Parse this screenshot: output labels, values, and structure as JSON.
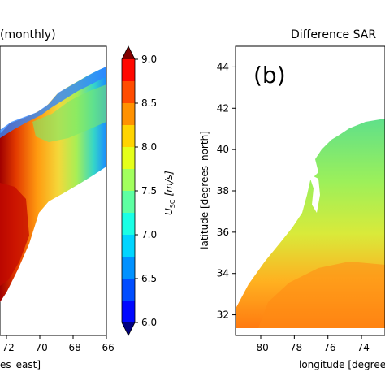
{
  "chart_data": [
    {
      "type": "heatmap",
      "panel": "left",
      "title": "(monthly)",
      "xlabel": "es_east]",
      "xticks": [
        "-72",
        "-70",
        "-68",
        "-66"
      ],
      "colormap": "jet",
      "colorbar": {
        "label": "U",
        "label_sub": "SC",
        "label_units": "[m/s]",
        "min": 6.0,
        "max": 9.0,
        "extend": "both",
        "levels": [
          6.0,
          6.25,
          6.5,
          6.75,
          7.0,
          7.25,
          7.5,
          7.75,
          8.0,
          8.25,
          8.5,
          8.75,
          9.0
        ],
        "ticks": [
          "6.0",
          "6.5",
          "7.0",
          "7.5",
          "8.0",
          "8.5",
          "9.0"
        ]
      }
    },
    {
      "type": "heatmap",
      "panel": "right",
      "title": "Difference SAR",
      "panel_label": "(b)",
      "xlabel": "longitude [degree",
      "ylabel": "latitude [degrees_north]",
      "xticks": [
        "-80",
        "-78",
        "-76",
        "-74"
      ],
      "yticks": [
        "32",
        "34",
        "36",
        "38",
        "40",
        "42",
        "44"
      ]
    }
  ]
}
